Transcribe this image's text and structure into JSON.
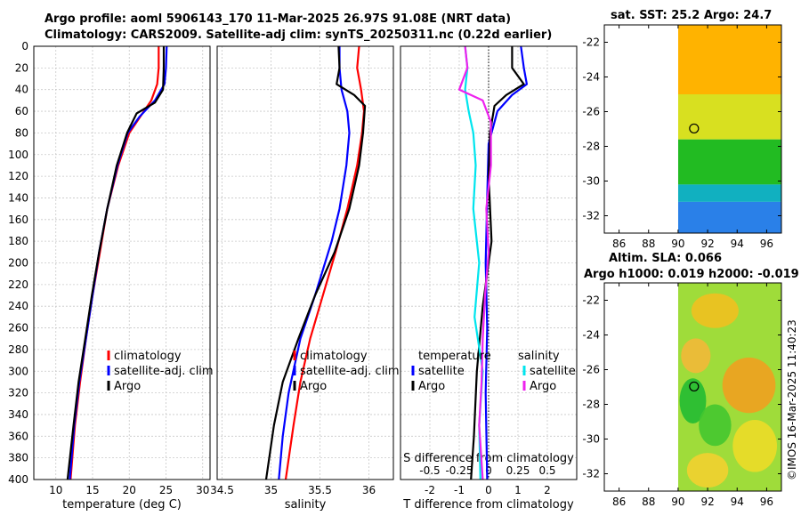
{
  "titles": {
    "line1": "Argo profile: aoml 5906143_170 11-Mar-2025 26.97S 91.08E (NRT data)",
    "line2": "Climatology: CARS2009. Satellite-adj clim: synTS_20250311.nc (0.22d earlier)",
    "map1": "sat. SST: 25.2 Argo: 24.7",
    "map2_line1": "Altim. SLA: 0.066",
    "map2_line2": "Argo h1000: 0.019 h2000: -0.019"
  },
  "credit": "©IMOS 16-Mar-2025 11:40:23",
  "colors": {
    "climatology": "#ff0000",
    "satellite": "#0000ff",
    "argo": "#000000",
    "s_satellite": "#00e5ee",
    "s_argo": "#ee22ee"
  },
  "depth_axis": {
    "ticks": [
      "0",
      "20",
      "40",
      "60",
      "80",
      "100",
      "120",
      "140",
      "160",
      "180",
      "200",
      "220",
      "240",
      "260",
      "280",
      "300",
      "320",
      "340",
      "360",
      "380",
      "400"
    ]
  },
  "chart_data": [
    {
      "type": "line",
      "panel": "temperature",
      "xlabel": "temperature (deg C)",
      "ylabel": "depth",
      "xlim": [
        7,
        31
      ],
      "ylim": [
        400,
        0
      ],
      "xticks": [
        "10",
        "15",
        "20",
        "25",
        "30"
      ],
      "legend": [
        "climatology",
        "satellite-adj. clim",
        "Argo"
      ],
      "series": [
        {
          "name": "climatology",
          "color": "#ff0000",
          "points": [
            [
              24.0,
              0
            ],
            [
              24.0,
              20
            ],
            [
              23.8,
              35
            ],
            [
              23.0,
              50
            ],
            [
              21.5,
              65
            ],
            [
              20.0,
              80
            ],
            [
              18.5,
              110
            ],
            [
              17.0,
              150
            ],
            [
              16.0,
              190
            ],
            [
              15.0,
              230
            ],
            [
              14.1,
              270
            ],
            [
              13.3,
              310
            ],
            [
              12.6,
              350
            ],
            [
              12.0,
              400
            ]
          ]
        },
        {
          "name": "satellite-adj. clim",
          "color": "#0000ff",
          "points": [
            [
              25.1,
              0
            ],
            [
              25.0,
              20
            ],
            [
              24.8,
              35
            ],
            [
              23.5,
              50
            ],
            [
              21.4,
              65
            ],
            [
              19.8,
              80
            ],
            [
              18.4,
              110
            ],
            [
              17.0,
              150
            ],
            [
              15.9,
              190
            ],
            [
              15.0,
              230
            ],
            [
              14.1,
              270
            ],
            [
              13.2,
              310
            ],
            [
              12.5,
              350
            ],
            [
              11.9,
              400
            ]
          ]
        },
        {
          "name": "Argo",
          "color": "#000000",
          "points": [
            [
              24.7,
              0
            ],
            [
              24.7,
              20
            ],
            [
              24.6,
              40
            ],
            [
              23.5,
              52
            ],
            [
              21.0,
              62
            ],
            [
              19.7,
              80
            ],
            [
              18.3,
              110
            ],
            [
              17.0,
              150
            ],
            [
              15.9,
              190
            ],
            [
              14.9,
              230
            ],
            [
              14.0,
              270
            ],
            [
              13.1,
              310
            ],
            [
              12.4,
              350
            ],
            [
              11.6,
              400
            ]
          ]
        }
      ]
    },
    {
      "type": "line",
      "panel": "salinity",
      "xlabel": "salinity",
      "ylabel": "depth",
      "xlim": [
        34.45,
        36.25
      ],
      "ylim": [
        400,
        0
      ],
      "xticks": [
        "34.5",
        "35",
        "35.5",
        "36"
      ],
      "legend": [
        "climatology",
        "satellite-adj. clim",
        "Argo"
      ],
      "series": [
        {
          "name": "climatology",
          "color": "#ff0000",
          "points": [
            [
              35.9,
              0
            ],
            [
              35.88,
              20
            ],
            [
              35.92,
              40
            ],
            [
              35.95,
              60
            ],
            [
              35.93,
              80
            ],
            [
              35.88,
              110
            ],
            [
              35.78,
              150
            ],
            [
              35.66,
              190
            ],
            [
              35.53,
              230
            ],
            [
              35.4,
              270
            ],
            [
              35.3,
              310
            ],
            [
              35.23,
              350
            ],
            [
              35.15,
              400
            ]
          ]
        },
        {
          "name": "satellite-adj. clim",
          "color": "#0000ff",
          "points": [
            [
              35.7,
              0
            ],
            [
              35.7,
              20
            ],
            [
              35.72,
              40
            ],
            [
              35.78,
              60
            ],
            [
              35.8,
              80
            ],
            [
              35.77,
              110
            ],
            [
              35.7,
              150
            ],
            [
              35.62,
              180
            ],
            [
              35.45,
              230
            ],
            [
              35.3,
              270
            ],
            [
              35.18,
              320
            ],
            [
              35.12,
              360
            ],
            [
              35.08,
              400
            ]
          ]
        },
        {
          "name": "Argo",
          "color": "#000000",
          "points": [
            [
              35.69,
              0
            ],
            [
              35.7,
              20
            ],
            [
              35.67,
              35
            ],
            [
              35.85,
              45
            ],
            [
              35.96,
              55
            ],
            [
              35.94,
              80
            ],
            [
              35.9,
              110
            ],
            [
              35.8,
              150
            ],
            [
              35.65,
              190
            ],
            [
              35.45,
              230
            ],
            [
              35.28,
              270
            ],
            [
              35.12,
              310
            ],
            [
              35.03,
              350
            ],
            [
              34.95,
              400
            ]
          ]
        }
      ]
    },
    {
      "type": "line",
      "panel": "difference",
      "xlabel": "T difference from climatology",
      "x2label": "S difference from climatology",
      "ylabel": "depth",
      "xlim": [
        -3,
        3
      ],
      "ylim": [
        400,
        0
      ],
      "xticks": [
        "-2",
        "-1",
        "0",
        "1",
        "2"
      ],
      "x2lim": [
        -0.75,
        0.75
      ],
      "x2ticks": [
        "-0.5",
        "-0.25",
        "0",
        "0.25",
        "0.5"
      ],
      "legend_left": {
        "header": "temperature",
        "items": [
          "satellite",
          "Argo"
        ]
      },
      "legend_right": {
        "header": "salinity",
        "items": [
          "satellite",
          "Argo"
        ]
      },
      "series": [
        {
          "name": "temperature satellite",
          "color": "#0000ff",
          "axis": "T",
          "points": [
            [
              1.1,
              0
            ],
            [
              1.2,
              20
            ],
            [
              1.3,
              35
            ],
            [
              0.8,
              45
            ],
            [
              0.3,
              60
            ],
            [
              0.0,
              90
            ],
            [
              -0.05,
              140
            ],
            [
              -0.1,
              200
            ],
            [
              -0.05,
              260
            ],
            [
              -0.1,
              320
            ],
            [
              -0.05,
              400
            ]
          ]
        },
        {
          "name": "temperature Argo",
          "color": "#000000",
          "axis": "T",
          "points": [
            [
              0.8,
              0
            ],
            [
              0.8,
              20
            ],
            [
              1.2,
              35
            ],
            [
              0.6,
              45
            ],
            [
              0.2,
              55
            ],
            [
              0.05,
              80
            ],
            [
              0.0,
              120
            ],
            [
              0.1,
              180
            ],
            [
              -0.2,
              240
            ],
            [
              -0.4,
              300
            ],
            [
              -0.5,
              360
            ],
            [
              -0.6,
              400
            ]
          ]
        },
        {
          "name": "salinity satellite",
          "color": "#00e5ee",
          "axis": "S",
          "points": [
            [
              -0.2,
              0
            ],
            [
              -0.18,
              20
            ],
            [
              -0.2,
              40
            ],
            [
              -0.17,
              60
            ],
            [
              -0.13,
              80
            ],
            [
              -0.11,
              110
            ],
            [
              -0.13,
              150
            ],
            [
              -0.08,
              200
            ],
            [
              -0.12,
              250
            ],
            [
              -0.05,
              300
            ],
            [
              -0.08,
              350
            ],
            [
              -0.07,
              400
            ]
          ]
        },
        {
          "name": "salinity Argo",
          "color": "#ee22ee",
          "axis": "S",
          "points": [
            [
              -0.2,
              0
            ],
            [
              -0.18,
              20
            ],
            [
              -0.25,
              40
            ],
            [
              -0.05,
              50
            ],
            [
              0.02,
              70
            ],
            [
              0.02,
              110
            ],
            [
              -0.02,
              150
            ],
            [
              0.0,
              190
            ],
            [
              -0.03,
              230
            ],
            [
              -0.05,
              270
            ],
            [
              -0.06,
              310
            ],
            [
              -0.08,
              350
            ],
            [
              -0.05,
              400
            ]
          ]
        }
      ]
    },
    {
      "type": "heatmap",
      "panel": "sat. SST map",
      "xlim": [
        85,
        97
      ],
      "ylim": [
        -33,
        -21
      ],
      "xticks": [
        "86",
        "88",
        "90",
        "92",
        "94",
        "96"
      ],
      "yticks": [
        "-22",
        "-24",
        "-26",
        "-28",
        "-30",
        "-32"
      ],
      "data_coverage_lon": [
        90,
        97
      ],
      "argo_position": [
        91.08,
        -26.97
      ],
      "bands": [
        {
          "lat": [
            -21,
            -25
          ],
          "color": "#ffb300"
        },
        {
          "lat": [
            -25,
            -27.6
          ],
          "color": "#d8e020"
        },
        {
          "lat": [
            -27.6,
            -30.2
          ],
          "color": "#22bb22"
        },
        {
          "lat": [
            -30.2,
            -31.2
          ],
          "color": "#11b0c0"
        },
        {
          "lat": [
            -31.2,
            -33
          ],
          "color": "#2a80e8"
        }
      ]
    },
    {
      "type": "heatmap",
      "panel": "Altim. SLA map",
      "xlim": [
        85,
        97
      ],
      "ylim": [
        -33,
        -21
      ],
      "xticks": [
        "86",
        "88",
        "90",
        "92",
        "94",
        "96"
      ],
      "yticks": [
        "-22",
        "-24",
        "-26",
        "-28",
        "-30",
        "-32"
      ],
      "data_coverage_lon": [
        90,
        97
      ],
      "argo_position": [
        91.08,
        -26.97
      ],
      "background": "#9fdc3a",
      "blobs": [
        {
          "center": [
            92.5,
            -22.6
          ],
          "radius": [
            1.6,
            1.0
          ],
          "color": "#f0c020"
        },
        {
          "center": [
            91.2,
            -25.2
          ],
          "radius": [
            1.0,
            1.0
          ],
          "color": "#f2b838"
        },
        {
          "center": [
            94.8,
            -26.9
          ],
          "radius": [
            1.8,
            1.6
          ],
          "color": "#f0a020"
        },
        {
          "center": [
            95.2,
            -30.4
          ],
          "radius": [
            1.5,
            1.5
          ],
          "color": "#ecdc28"
        },
        {
          "center": [
            92.0,
            -31.8
          ],
          "radius": [
            1.4,
            1.0
          ],
          "color": "#f2d030"
        },
        {
          "center": [
            91.0,
            -27.8
          ],
          "radius": [
            0.9,
            1.3
          ],
          "color": "#22bb33"
        },
        {
          "center": [
            92.5,
            -29.2
          ],
          "radius": [
            1.1,
            1.2
          ],
          "color": "#44c630"
        }
      ]
    }
  ]
}
